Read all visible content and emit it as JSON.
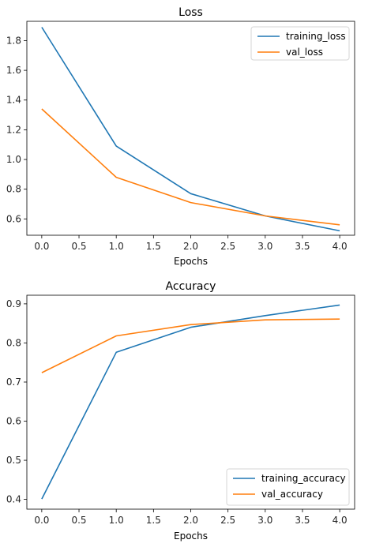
{
  "colors": {
    "training": "#1f77b4",
    "validation": "#ff7f0e"
  },
  "chart_data": [
    {
      "type": "line",
      "title": "Loss",
      "xlabel": "Epochs",
      "ylabel": "",
      "x": [
        0,
        1,
        2,
        3,
        4
      ],
      "xlim": [
        -0.2,
        4.2
      ],
      "ylim": [
        0.49,
        1.93
      ],
      "xticks": [
        "0.0",
        "0.5",
        "1.0",
        "1.5",
        "2.0",
        "2.5",
        "3.0",
        "3.5",
        "4.0"
      ],
      "yticks": [
        "0.6",
        "0.8",
        "1.0",
        "1.2",
        "1.4",
        "1.6",
        "1.8"
      ],
      "grid": false,
      "legend_position": "upper right",
      "series": [
        {
          "name": "training_loss",
          "color": "#1f77b4",
          "values": [
            1.89,
            1.09,
            0.77,
            0.62,
            0.52
          ]
        },
        {
          "name": "val_loss",
          "color": "#ff7f0e",
          "values": [
            1.34,
            0.88,
            0.71,
            0.62,
            0.56
          ]
        }
      ]
    },
    {
      "type": "line",
      "title": "Accuracy",
      "xlabel": "Epochs",
      "ylabel": "",
      "x": [
        0,
        1,
        2,
        3,
        4
      ],
      "xlim": [
        -0.2,
        4.2
      ],
      "ylim": [
        0.375,
        0.922
      ],
      "xticks": [
        "0.0",
        "0.5",
        "1.0",
        "1.5",
        "2.0",
        "2.5",
        "3.0",
        "3.5",
        "4.0"
      ],
      "yticks": [
        "0.4",
        "0.5",
        "0.6",
        "0.7",
        "0.8",
        "0.9"
      ],
      "grid": false,
      "legend_position": "lower right",
      "series": [
        {
          "name": "training_accuracy",
          "color": "#1f77b4",
          "values": [
            0.401,
            0.776,
            0.84,
            0.87,
            0.897
          ]
        },
        {
          "name": "val_accuracy",
          "color": "#ff7f0e",
          "values": [
            0.724,
            0.818,
            0.847,
            0.859,
            0.861
          ]
        }
      ]
    }
  ]
}
